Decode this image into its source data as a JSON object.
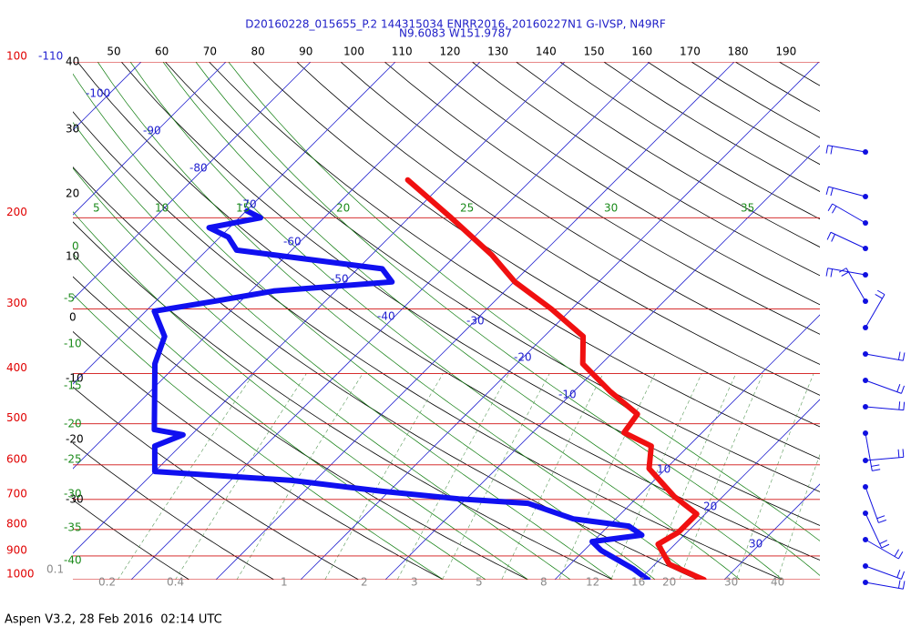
{
  "header": {
    "title": "D20160228_015655_P.2 144315034 ENRR2016, 20160227N1 G-IVSP, N49RF",
    "subtitle": "N9.6083 W151.9787"
  },
  "footer": "Aspen V3.2, 28 Feb 2016  02:14 UTC",
  "top_scale": [
    50,
    60,
    70,
    80,
    90,
    100,
    110,
    120,
    130,
    140,
    150,
    160,
    170,
    180,
    190
  ],
  "pressure_levels": [
    100,
    200,
    300,
    400,
    500,
    600,
    700,
    800,
    900,
    1000
  ],
  "temperature_labels": [
    40,
    30,
    20,
    10,
    0,
    -10,
    -20,
    -30
  ],
  "isotherm_labels": [
    -110,
    -100,
    -90,
    -80,
    -70,
    -60,
    -50,
    -40,
    -30,
    -20,
    -10,
    10,
    20,
    30
  ],
  "adiabat_labels_top": [
    5,
    10,
    15,
    20,
    25,
    30,
    35
  ],
  "adiabat_labels_left": [
    0,
    -5,
    -10,
    -15,
    -20,
    -25,
    -30,
    -35,
    -40
  ],
  "mixing_ratio_labels": [
    0.1,
    0.2,
    0.4,
    1,
    2,
    3,
    5,
    8,
    12,
    16,
    20,
    30,
    40
  ],
  "profiles": {
    "temperature": {
      "pressure": [
        1000,
        934,
        854,
        810,
        747,
        690,
        610,
        552,
        520,
        479,
        433,
        383,
        339,
        300,
        266,
        236,
        200,
        169
      ],
      "values": [
        27.6,
        21.7,
        18,
        19,
        19,
        14.2,
        8,
        5.6,
        0.8,
        0.2,
        -5.7,
        -12.2,
        -15.4,
        -22.4,
        -29.9,
        -35.8,
        -45,
        -54.6
      ]
    },
    "dewpoint": {
      "pressure": [
        1000,
        953,
        878,
        844,
        820,
        788,
        763,
        712,
        698,
        675,
        643,
        618,
        552,
        525,
        513,
        451,
        383,
        339,
        303,
        289,
        277,
        266,
        251,
        231,
        218,
        209,
        200,
        194
      ],
      "values": [
        21,
        18,
        12,
        9.9,
        15,
        12.4,
        5,
        -2.2,
        -10.9,
        -20.8,
        -32.8,
        -50,
        -53,
        -51,
        -55,
        -58.4,
        -62.7,
        -64.8,
        -69,
        -62.7,
        -57.3,
        -44.4,
        -47.1,
        -66.5,
        -69,
        -72.4,
        -67.5,
        -69.9
      ]
    }
  }
}
